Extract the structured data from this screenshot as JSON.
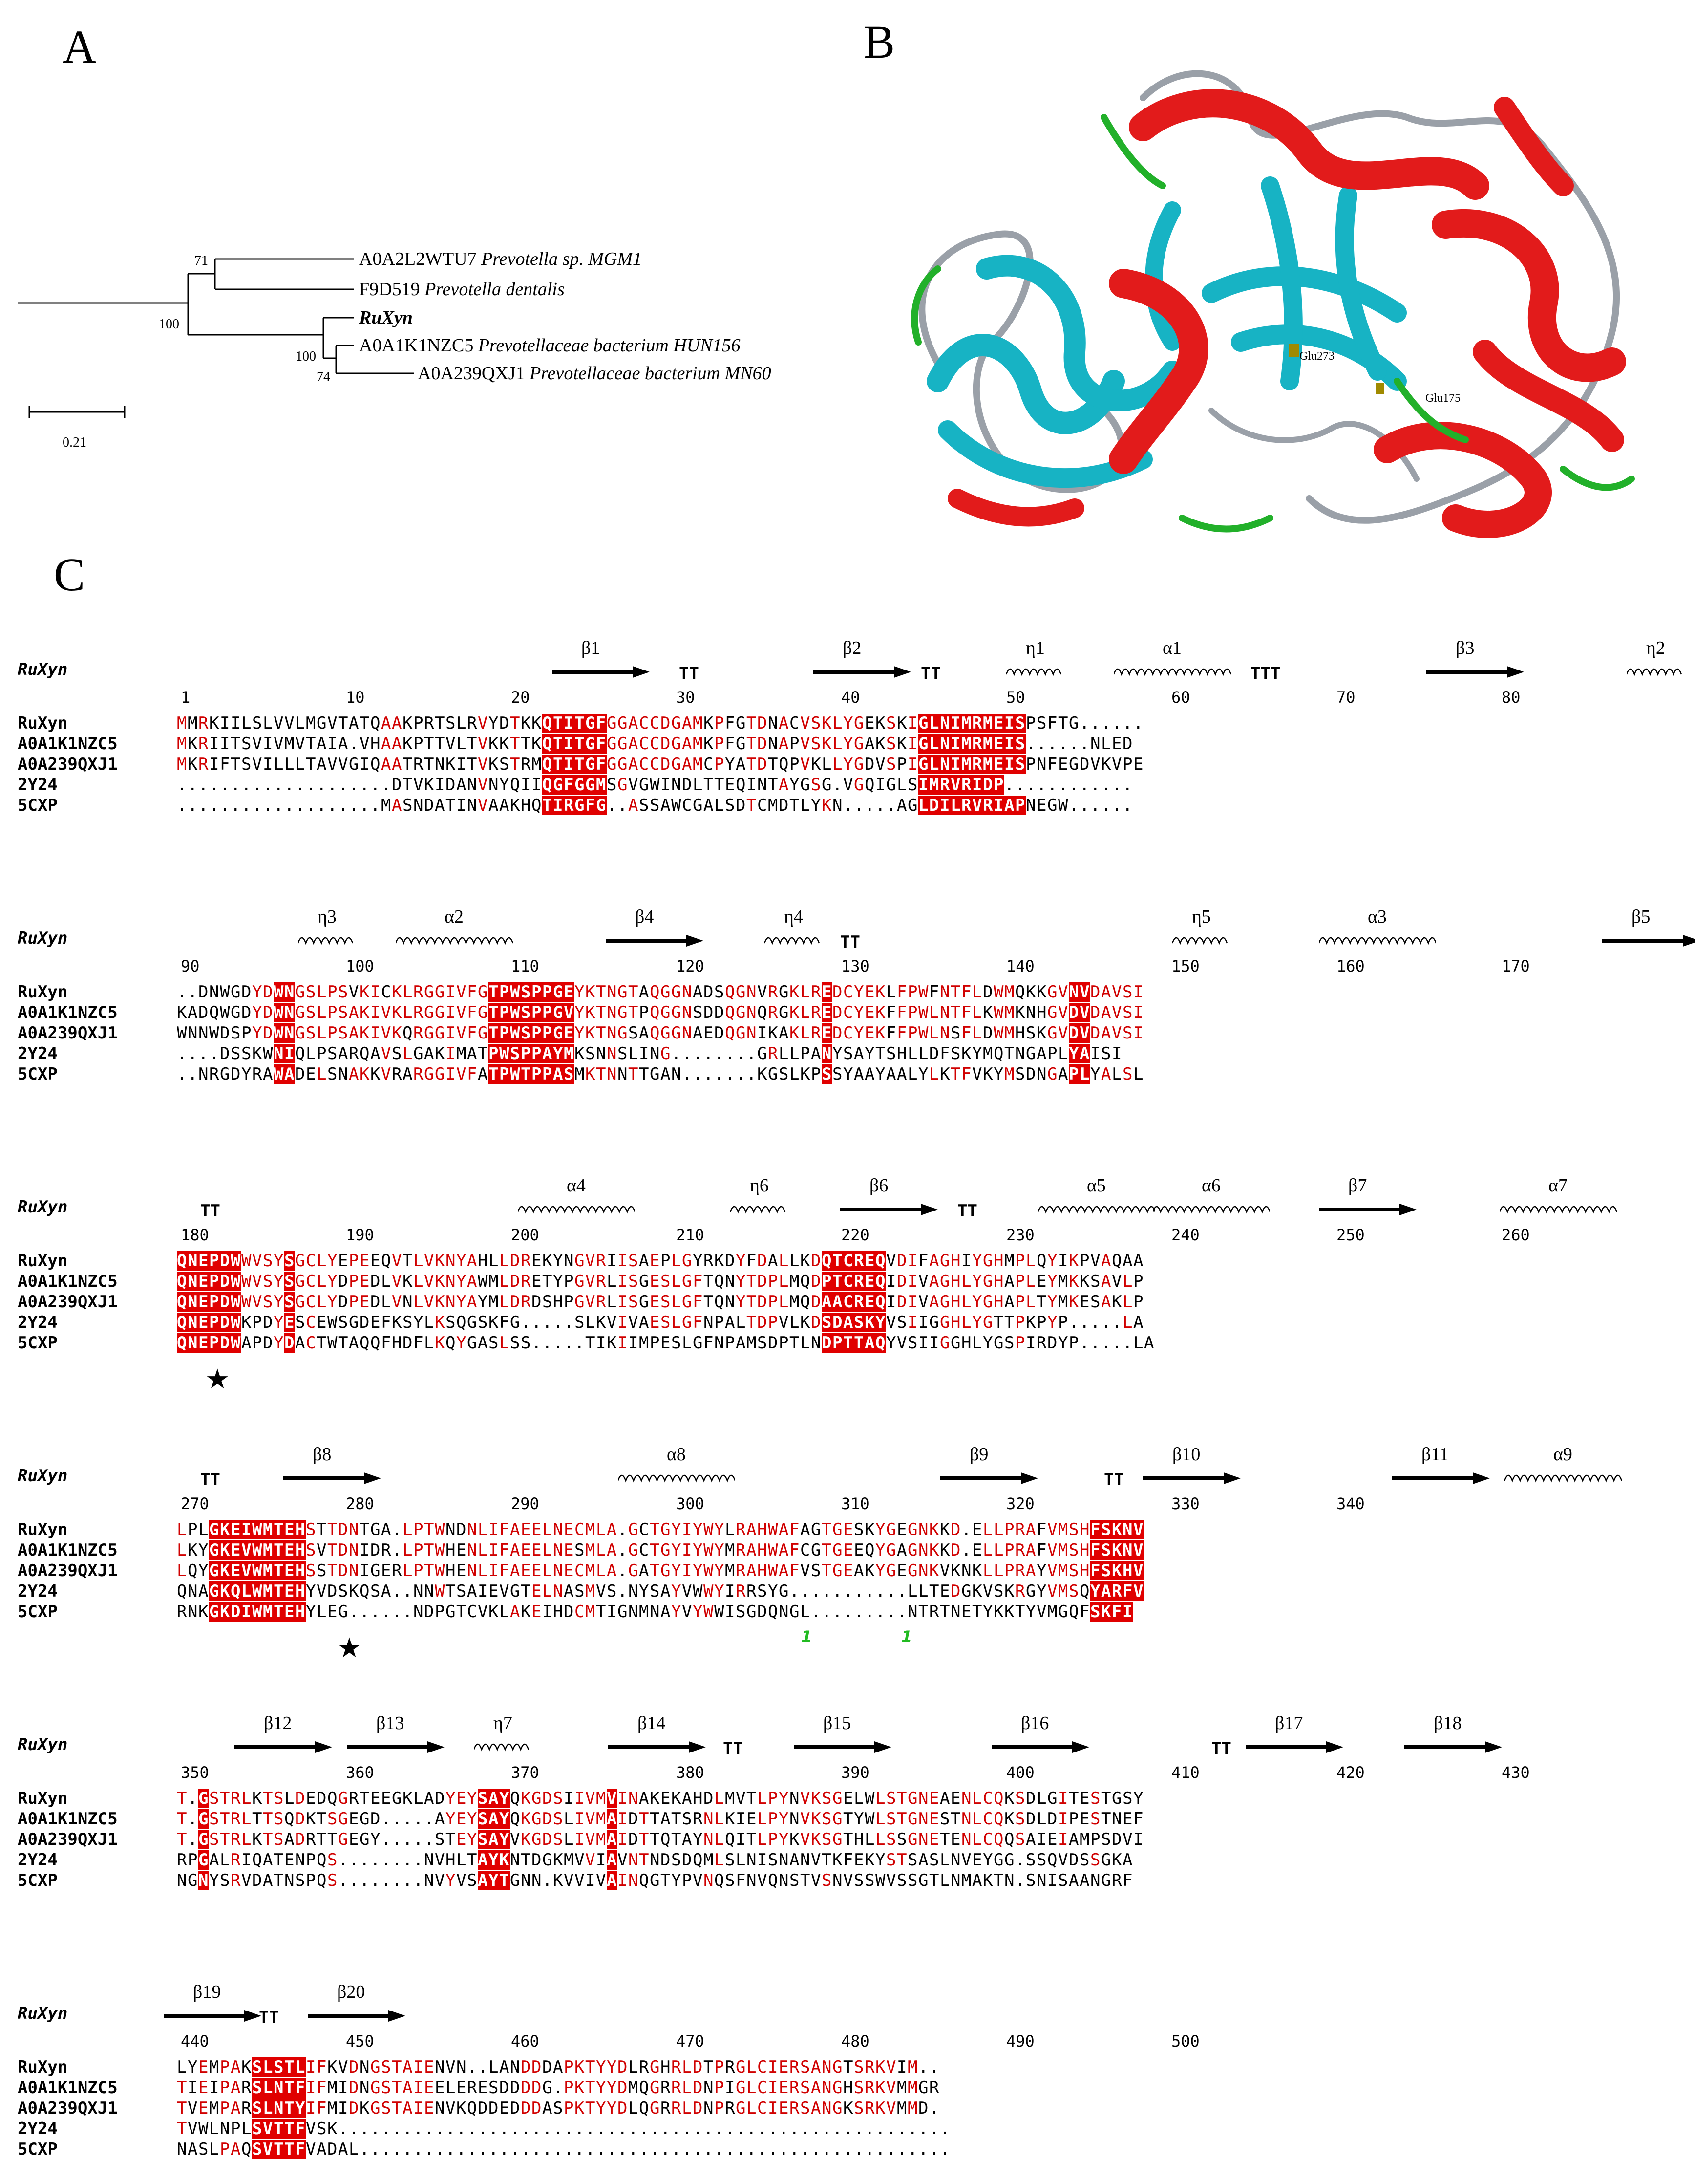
{
  "panels": {
    "a": "A",
    "b": "B",
    "c": "C"
  },
  "tree": {
    "leaves": [
      {
        "acc": "A0A2L2WTU7",
        "species": "Prevotella sp. MGM1"
      },
      {
        "acc": "F9D519",
        "species": "Prevotella dentalis"
      },
      {
        "acc": "RuXyn",
        "species": ""
      },
      {
        "acc": "A0A1K1NZC5",
        "species": "Prevotellaceae bacterium HUN156"
      },
      {
        "acc": "A0A239QXJ1",
        "species": "Prevotellaceae bacterium MN60"
      }
    ],
    "bootstrap": [
      "71",
      "100",
      "100",
      "74"
    ],
    "scale": "0.21"
  },
  "structure": {
    "labels": [
      "Glu273",
      "Glu175"
    ]
  },
  "alignment": {
    "ss_name": "RuXyn",
    "seq_names": [
      "RuXyn",
      "A0A1K1NZC5",
      "A0A239QXJ1",
      "2Y24",
      "5CXP"
    ],
    "blocks": [
      {
        "ss": [
          "β1",
          "TT",
          "β2",
          "TT",
          "η1",
          "α1",
          "TTT",
          "β3",
          "η2"
        ],
        "nums": [
          "1",
          "10",
          "20",
          "30",
          "40",
          "50",
          "60",
          "70",
          "80"
        ],
        "seqs": [
          "MMRKIILSLVVLMGVTATQAAKPRTSLRVYDTKKQTITGFGGACCDGAMKPFGTDNACVSKLYGEKSKIGLNIMRMEISPSFTG......",
          "MKRIITSVIVMVTAIA.VHAAKPTTVLTVKKTTKQTITGFGGACCDGAMKPFGTDNAPVSKLYGAKSKIGLNIMRMEIS......NLED",
          "MKRIFTSVILLLTAVVGIQAATRTNKITVKSTRMQTITGFGGACCDGAMCPYATDTQPVKLLYGDVSPIGLNIMRMEISPNFEGDVKVPE",
          "....................DTVKIDANVNYQIIQGFGGMSGVGWINDLTTEQINTAYGSG.VGQIGLSIMRVRIDP............",
          "...................MASNDATINVAAKHQTIRGFG..ASSAWCGALSDTCMDTLYKN.....AGLDILRVRIAPNEGW......"
        ]
      },
      {
        "ss": [
          "η3",
          "α2",
          "β4",
          "η4",
          "TT",
          "η5",
          "α3",
          "β5"
        ],
        "nums": [
          "90",
          "100",
          "110",
          "120",
          "130",
          "140",
          "150",
          "160",
          "170"
        ],
        "seqs": [
          "..DNWGDYDWNGSLPSVKICKLRGGIVFGTPWSPPGEYKTNGTAQGGNADSQGNVRGKLREDCYEKLFPWFNTFLDWMQKKGVNVDAVSI",
          "KADQWGDYDWNGSLPSAKIVKLRGGIVFGTPWSPPGVYKTNGTPQGGNSDDQGNQRGKLREDCYEKFFPWLNTFLKWMKNHGVDVDAVSI",
          "WNNWDSPYDWNGSLPSAKIVKQRGGIVFGTPWSPPGEYKTNGSAQGGNAEDQGNIKAKLREDCYEKFFPWLNSFLDWMHSKGVDVDAVSI",
          "....DSSKWNIQLPSARQAVSLGAKIMATPWSPPAYMKSNNSLING........GRLLPANYSAYTSHLLDFSKYMQTNGAPLYAISI",
          "..NRGDYRAWADELSNAKKVRARGGIVFATPWTPPASMKTNNTTGAN.......KGSLKPSSYAAYAALYLKTFVKYMSDNGAPLYALSL"
        ]
      },
      {
        "ss": [
          "TT",
          "α4",
          "η6",
          "β6",
          "TT",
          "α5",
          "α6",
          "β7",
          "α7"
        ],
        "nums": [
          "180",
          "190",
          "200",
          "210",
          "220",
          "230",
          "240",
          "250",
          "260"
        ],
        "seqs": [
          "QNEPDWWVSYSGCLYEPEEQVTLVKNYAHLLDREKYNGVRIISAEPLGYRKDYFDALLKDQTCREQVDIFAGHIYGHMPLQYIKPVAQAA",
          "QNEPDWWVSYSGCLYDPEDLVKLVKNYAWMLDRETYPGVRLISGESLGFTQNYTDPLMQDPTCREQIDIVAGHLYGHAPLEYMKKSAVLP",
          "QNEPDWWVSYSGCLYDPEDLVNLVKNYAYMLDRDSHPGVRLISGESLGFTQNYTDPLMQDAACREQIDIVAGHLYGHAPLTYMKESAKLP",
          "QNEPDWKPDYESCEWSGDEFKSYLKSQGSKFG.....SLKVIVAESLGFNPALTDPVLKDSDASKYVSIIGGHLYGTTPKPYP.....LA",
          "QNEPDWAPDYDACTWTAQQFHDFLKQYGASLSS.....TIKIIMPESLGFNPAMSDPTLNDPTTAQYVSIIGGHLYGSPIRDYP.....LA"
        ]
      },
      {
        "ss": [
          "TT",
          "β8",
          "α8",
          "β9",
          "TT",
          "β10",
          "β11",
          "α9"
        ],
        "nums": [
          "270",
          "280",
          "290",
          "300",
          "310",
          "320",
          "330",
          "340"
        ],
        "seqs": [
          "LPLGKEIWMTEHSTTDNTGA.LPTWNDNLIFAEELNECMLA.GCTGYIYWYLRAHWAFAGTGESKYGEGNKKD.ELLPRAFVMSHFSKNV",
          "LKYGKEVWMTEHSVTDNIDR.LPTWHENLIFAEELNESMLA.GCTGYIYWYMRAHWAFCGTGEEQYGAGNKKD.ELLPRAFVMSHFSKNV",
          "LQYGKEVWMTEHSSTDNIGERLPTWHENLIFAEELNECMLA.GATGYIYWYMRAHWAFVSTGEAKYGEGNKVKNKLLPRAYVMSHFSKHV",
          "QNAGKQLWMTEHYVDSKQSA..NNWTSAIEVGTELNASMVS.NYSAYVWWYIRRSYG...........LLTEDGKVSKRGYVMSQYARFV",
          "RNKGKDIWMTEHYLEG......NDPGTCVKLAKEIHDCMTIGNMNAYVYWWISGDQNGL.........NTRTNETYKKTYVMGQFSKFI"
        ]
      },
      {
        "ss": [
          "β12",
          "β13",
          "η7",
          "β14",
          "TT",
          "β15",
          "β16",
          "TT",
          "β17",
          "β18"
        ],
        "nums": [
          "350",
          "360",
          "370",
          "380",
          "390",
          "400",
          "410",
          "420",
          "430"
        ],
        "seqs": [
          "T.GSTRLKTSLDEDQGRTEEGKLADYEYSAYQKGDSIIVMVINAKEKAHDLMVTLPYNVKSGELWLSTGNEAENLCQKSDLGITESTGSY",
          "T.GSTRLTTSQDKTSGEGD.....AYEYSAYQKGDSLIVMAIDTTATSRNLKIELPYNVKSGTYWLSTGNESTNLCQKSDLDIPESTNEF",
          "T.GSTRLKTSADRTTGEGY.....STEYSAYVKGDSLIVMAIDTTQTAYNLQITLPYKVKSGTHLLSSGNETENLCQQSAIEIAMPSDVI",
          "RPGALRIQATENPQS........NVHLTAYKNTDGKMVVIAVNTNDSDQMLSLNISNANVTKFEKYSTSASLNVEYGG.SSQVDSSGKA",
          "NGNYSRVDATNSPQS........NVYVSAYTGNN.KVVIVAINQGTYPVNQSFNVQNSTVSNVSSWVSSGTLNMAKTN.SNISAANGRF"
        ]
      },
      {
        "ss": [
          "β19",
          "TT",
          "β20"
        ],
        "nums": [
          "440",
          "450",
          "460",
          "470",
          "480",
          "490",
          "500"
        ],
        "seqs": [
          "LYEMPAKSLSTLIFKVDNGSTAIENVN..LANDDDAPKTYYDLRGHRLDTPRGLCIERSANGTSRKVIM..",
          "TIEIPARSLNTFIFMIDNGSTAIEELERESDDDDG.PKTYYDMQGRRLDNPIGLCIERSANGHSRKVMMGR",
          "TVEMPARSLNTYIFMIDKGSTAIENVKQDDEDDDASPKTYYDLQGRRLDNPRGLCIERSANGKSRKVMMD.",
          "TVWLNPLSVTTFVSK.........................................................",
          "NASLPAQSVTTFVADAL......................................................."
        ]
      }
    ],
    "markers": {
      "green_one": "1",
      "star": "★"
    }
  }
}
